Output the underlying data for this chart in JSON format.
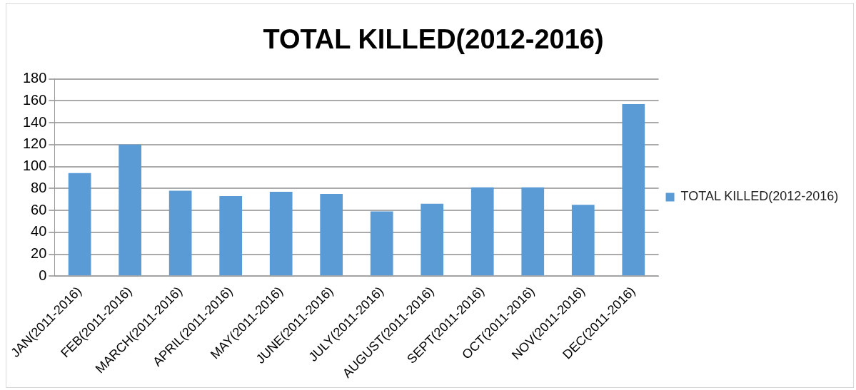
{
  "chart_data": {
    "type": "bar",
    "title": "TOTAL KILLED(2012-2016)",
    "categories": [
      "JAN(2011-2016)",
      "FEB(2011-2016)",
      "MARCH(2011-2016)",
      "APRIL(2011-2016)",
      "MAY(2011-2016)",
      "JUNE(2011-2016)",
      "JULY(2011-2016)",
      "AUGUST(2011-2016)",
      "SEPT(2011-2016)",
      "OCT(2011-2016)",
      "NOV(2011-2016)",
      "DEC(2011-2016)"
    ],
    "series": [
      {
        "name": "TOTAL KILLED(2012-2016)",
        "color": "#5b9bd5",
        "values": [
          94,
          120,
          78,
          73,
          77,
          75,
          59,
          66,
          81,
          81,
          65,
          157
        ]
      }
    ],
    "ylim": [
      0,
      180
    ],
    "yticks": [
      0,
      20,
      40,
      60,
      80,
      100,
      120,
      140,
      160,
      180
    ],
    "grid": "y",
    "legend": "right"
  }
}
